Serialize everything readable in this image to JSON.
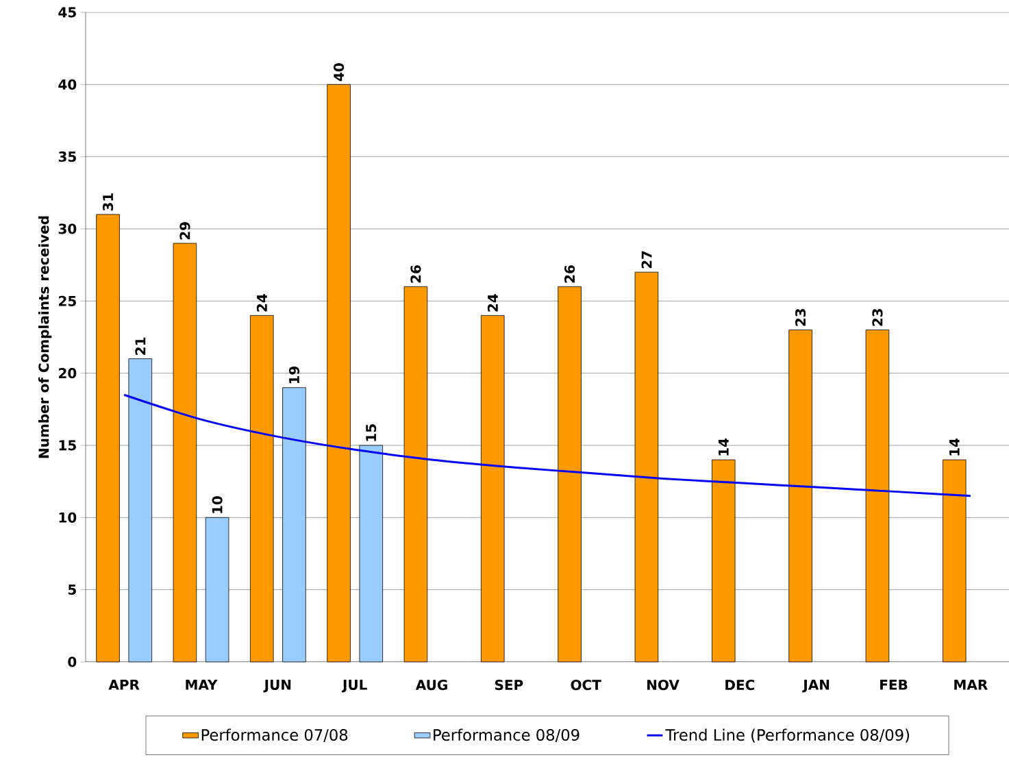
{
  "chart_data": {
    "type": "bar",
    "ylabel": "Number of Complaints received",
    "categories": [
      "APR",
      "MAY",
      "JUN",
      "JUL",
      "AUG",
      "SEP",
      "OCT",
      "NOV",
      "DEC",
      "JAN",
      "FEB",
      "MAR"
    ],
    "series": [
      {
        "name": "Performance 07/08",
        "color": "#ff9900",
        "values": [
          31,
          29,
          24,
          40,
          26,
          24,
          26,
          27,
          14,
          23,
          23,
          14
        ],
        "value_labels": [
          "31",
          "29",
          "24",
          "40",
          "26",
          "24",
          "26",
          "27",
          "14",
          "23",
          "23",
          "14"
        ]
      },
      {
        "name": "Performance 08/09",
        "color": "#99ccff",
        "values": [
          21,
          10,
          19,
          15,
          null,
          null,
          null,
          null,
          null,
          null,
          null,
          null
        ],
        "value_labels": [
          "21",
          "10",
          "19",
          "15",
          null,
          null,
          null,
          null,
          null,
          null,
          null,
          null
        ]
      },
      {
        "name": "Trend Line (Performance 08/09)",
        "type": "line",
        "color": "#0000ff",
        "values": [
          18.5,
          16.8,
          15.6,
          14.7,
          14.0,
          13.5,
          13.1,
          12.7,
          12.4,
          12.1,
          11.8,
          11.5
        ],
        "marker": "none",
        "line_style": "solid"
      }
    ],
    "ylim": [
      0,
      45
    ],
    "yticks": [
      0,
      5,
      10,
      15,
      20,
      25,
      30,
      35,
      40,
      45
    ],
    "grid": "y",
    "legend": "bottom"
  }
}
